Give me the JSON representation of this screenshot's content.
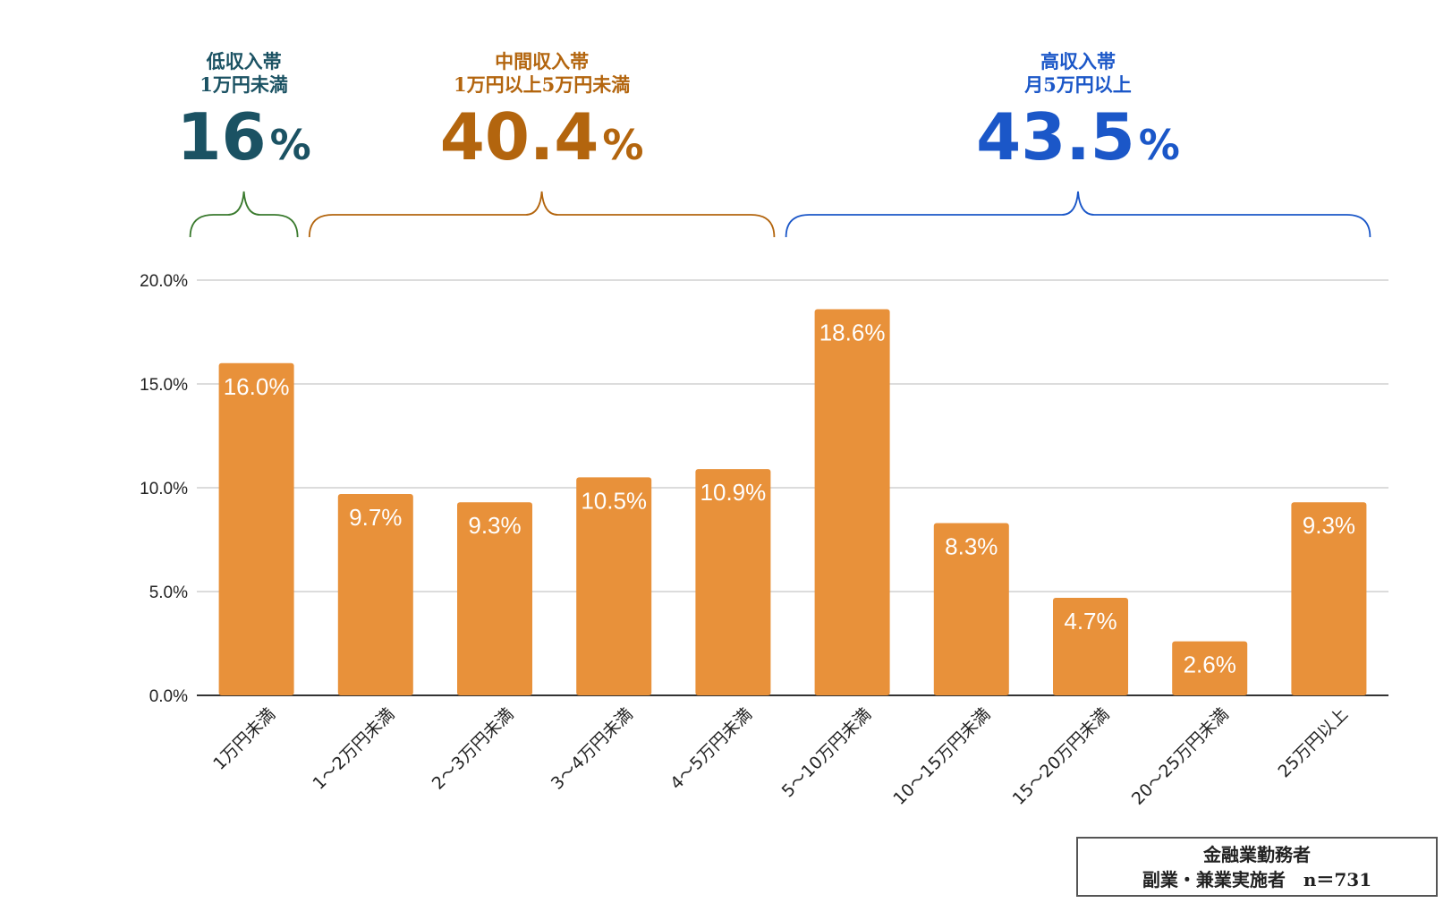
{
  "colors": {
    "bar": "#E8913A",
    "low": "#1B5263",
    "mid": "#B3650E",
    "high": "#1B57C8",
    "low_brace": "#3A7A2E",
    "mid_brace": "#B3650E",
    "high_brace": "#1B57C8",
    "grid": "#D0D0D0",
    "axis": "#333333"
  },
  "groups": [
    {
      "label_line1": "低収入帯",
      "label_line2": "1万円未満",
      "value": "16",
      "unit": "%",
      "color_key": "low",
      "brace_key": "low_brace",
      "from": 0,
      "to": 0
    },
    {
      "label_line1": "中間収入帯",
      "label_line2": "1万円以上5万円未満",
      "value": "40.4",
      "unit": "%",
      "color_key": "mid",
      "brace_key": "mid_brace",
      "from": 1,
      "to": 4
    },
    {
      "label_line1": "高収入帯",
      "label_line2": "月5万円以上",
      "value": "43.5",
      "unit": "%",
      "color_key": "high",
      "brace_key": "high_brace",
      "from": 5,
      "to": 9
    }
  ],
  "chart_data": {
    "type": "bar",
    "categories": [
      "1万円未満",
      "1～2万円未満",
      "2～3万円未満",
      "3～4万円未満",
      "4～5万円未満",
      "5～10万円未満",
      "10～15万円未満",
      "15～20万円未満",
      "20～25万円未満",
      "25万円以上"
    ],
    "values": [
      16.0,
      9.7,
      9.3,
      10.5,
      10.9,
      18.6,
      8.3,
      4.7,
      2.6,
      9.3
    ],
    "data_labels": [
      "16.0%",
      "9.7%",
      "9.3%",
      "10.5%",
      "10.9%",
      "18.6%",
      "8.3%",
      "4.7%",
      "2.6%",
      "9.3%"
    ],
    "yticks": [
      "0.0%",
      "5.0%",
      "10.0%",
      "15.0%",
      "20.0%"
    ],
    "ylim": [
      0,
      20
    ],
    "grid": true,
    "legend": "none"
  },
  "note": {
    "line1": "金融業勤務者",
    "line2": "副業・兼業実施者　n＝731"
  }
}
